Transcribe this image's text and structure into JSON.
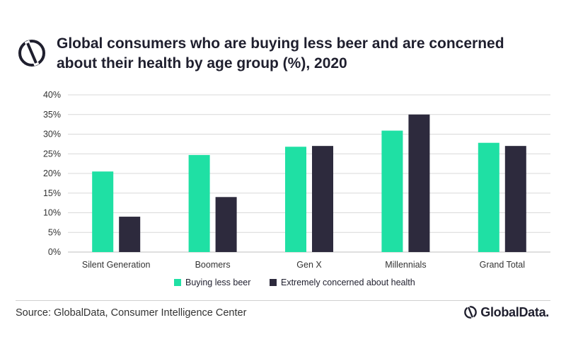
{
  "header": {
    "title": "Global consumers who are buying less beer and are concerned about their health by age group (%), 2020",
    "logo_icon": "globaldata-logo-icon"
  },
  "footer": {
    "source": "Source: GlobalData, Consumer Intelligence Center",
    "brand_name": "GlobalData.",
    "brand_icon": "globaldata-logo-icon"
  },
  "colors": {
    "buying_less_beer": "#1fe0a4",
    "concerned_health": "#2d2a3d",
    "grid": "#d9d9d9",
    "axis": "#bfbfbf"
  },
  "chart_data": {
    "type": "bar",
    "title": "Global consumers who are buying less beer and are concerned about their health by age group (%), 2020",
    "categories": [
      "Silent Generation",
      "Boomers",
      "Gen X",
      "Millennials",
      "Grand Total"
    ],
    "series": [
      {
        "name": "Buying less beer",
        "values": [
          20.5,
          24.7,
          26.8,
          30.9,
          27.8
        ]
      },
      {
        "name": "Extremely concerned about health",
        "values": [
          9.0,
          14.0,
          27.0,
          35.0,
          27.0
        ]
      }
    ],
    "ylim": [
      0,
      40
    ],
    "yticks": [
      0,
      5,
      10,
      15,
      20,
      25,
      30,
      35,
      40
    ],
    "ytick_labels": [
      "0%",
      "5%",
      "10%",
      "15%",
      "20%",
      "25%",
      "30%",
      "35%",
      "40%"
    ],
    "xlabel": "",
    "ylabel": "",
    "grid": true,
    "legend": "bottom-center"
  }
}
